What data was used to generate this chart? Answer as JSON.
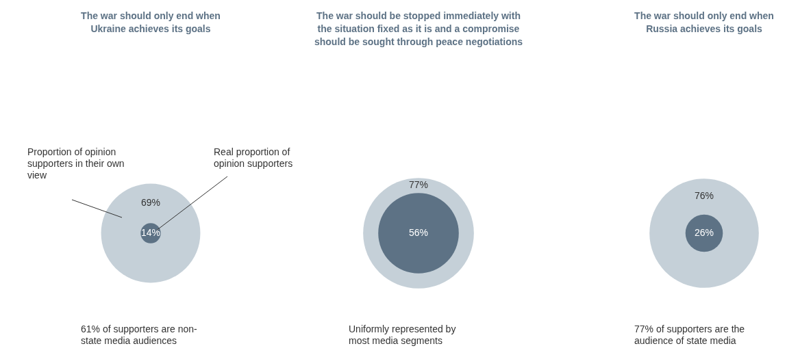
{
  "chart_data": {
    "type": "other",
    "categories": [
      "The war should only end when Ukraine achieves its goals",
      "The war should be stopped immediately with the situation fixed as it is and a compromise should be sought through peace negotiations",
      "The war should only end when Russia achieves its goals"
    ],
    "series": [
      {
        "name": "Proportion of opinion supporters in their own view",
        "color": "#c5d0d8",
        "values": [
          69,
          77,
          76
        ],
        "value_labels": [
          "69%",
          "77%",
          "76%"
        ]
      },
      {
        "name": "Real proportion of opinion supporters",
        "color": "#5d7285",
        "values": [
          14,
          56,
          26
        ],
        "value_labels": [
          "14%",
          "56%",
          "26%"
        ]
      }
    ],
    "annotations": [
      "61% of supporters are non-state media audiences",
      "Uniformly represented by most media segments",
      "77% of supporters are the audience of state media"
    ]
  }
}
